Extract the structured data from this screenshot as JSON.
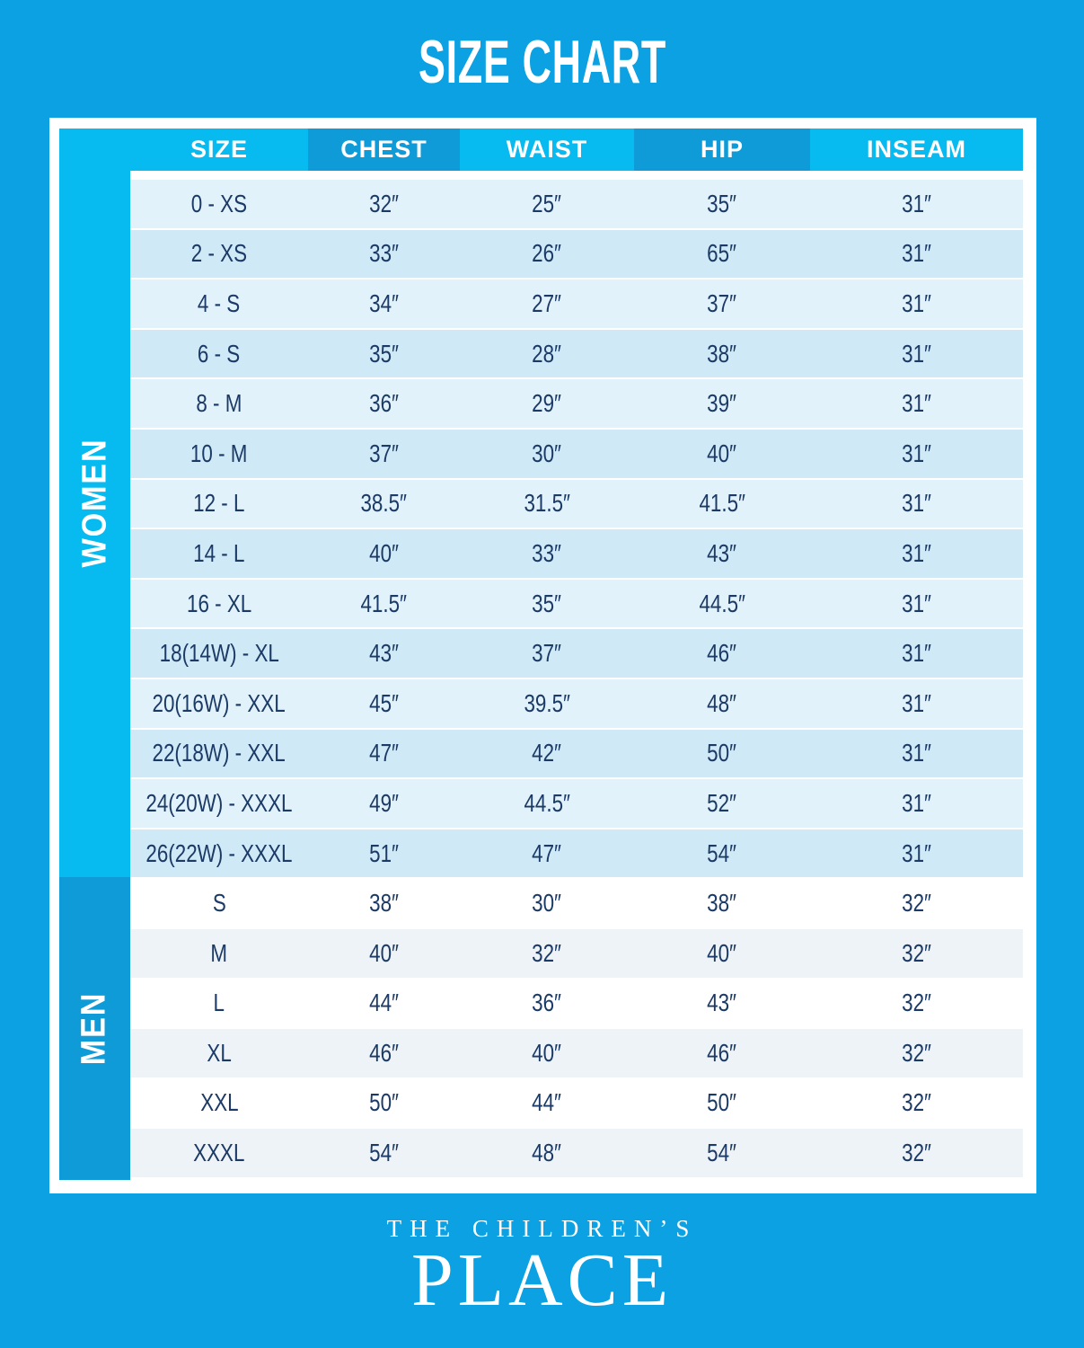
{
  "title": "SIZE CHART",
  "chart_data": {
    "type": "table",
    "title": "SIZE CHART",
    "columns": [
      "SIZE",
      "CHEST",
      "WAIST",
      "HIP",
      "INSEAM"
    ],
    "sections": [
      {
        "label": "WOMEN",
        "rows": [
          [
            "0 - XS",
            "32″",
            "25″",
            "35″",
            "31″"
          ],
          [
            "2 - XS",
            "33″",
            "26″",
            "65″",
            "31″"
          ],
          [
            "4 - S",
            "34″",
            "27″",
            "37″",
            "31″"
          ],
          [
            "6 - S",
            "35″",
            "28″",
            "38″",
            "31″"
          ],
          [
            "8 - M",
            "36″",
            "29″",
            "39″",
            "31″"
          ],
          [
            "10 - M",
            "37″",
            "30″",
            "40″",
            "31″"
          ],
          [
            "12 - L",
            "38.5″",
            "31.5″",
            "41.5″",
            "31″"
          ],
          [
            "14 - L",
            "40″",
            "33″",
            "43″",
            "31″"
          ],
          [
            "16 - XL",
            "41.5″",
            "35″",
            "44.5″",
            "31″"
          ],
          [
            "18(14W) - XL",
            "43″",
            "37″",
            "46″",
            "31″"
          ],
          [
            "20(16W) - XXL",
            "45″",
            "39.5″",
            "48″",
            "31″"
          ],
          [
            "22(18W) - XXL",
            "47″",
            "42″",
            "50″",
            "31″"
          ],
          [
            "24(20W) - XXXL",
            "49″",
            "44.5″",
            "52″",
            "31″"
          ],
          [
            "26(22W) - XXXL",
            "51″",
            "47″",
            "54″",
            "31″"
          ]
        ]
      },
      {
        "label": "MEN",
        "rows": [
          [
            "S",
            "38″",
            "30″",
            "38″",
            "32″"
          ],
          [
            "M",
            "40″",
            "32″",
            "40″",
            "32″"
          ],
          [
            "L",
            "44″",
            "36″",
            "43″",
            "32″"
          ],
          [
            "XL",
            "46″",
            "40″",
            "46″",
            "32″"
          ],
          [
            "XXL",
            "50″",
            "44″",
            "50″",
            "32″"
          ],
          [
            "XXXL",
            "54″",
            "48″",
            "54″",
            "32″"
          ]
        ]
      }
    ]
  },
  "logo": {
    "line1": "THE CHILDREN’S",
    "line2": "PLACE"
  },
  "colors": {
    "background": "#0BA1E2",
    "header_light": "#07BAF0",
    "header_dark": "#0E9BD8",
    "women_band": "#07BAF0",
    "men_band": "#0E9BD8",
    "women_row_odd": "#E2F2FB",
    "women_row_even": "#CFE9F7",
    "men_row_odd": "#FFFFFF",
    "men_row_even": "#EEF3F7",
    "text_navy": "#1B3A66",
    "white": "#FFFFFF"
  }
}
